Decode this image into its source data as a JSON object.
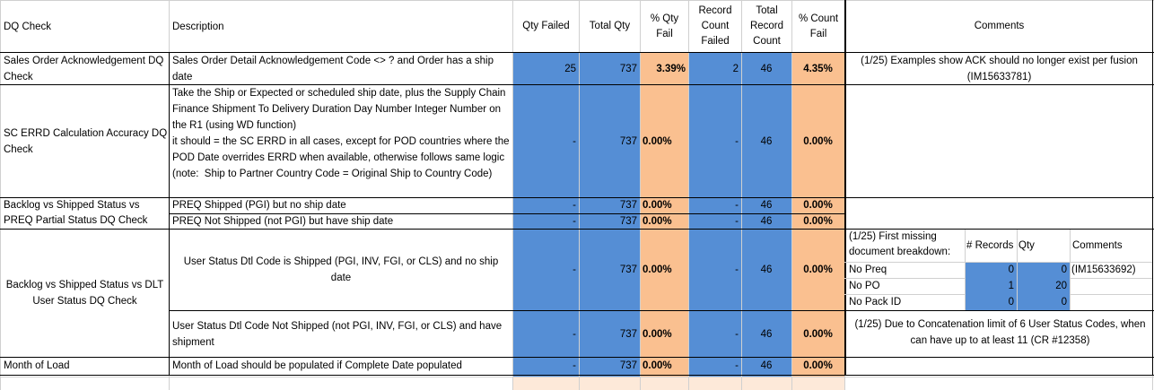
{
  "headers": {
    "dq_check": "DQ Check",
    "description": "Description",
    "qty_failed": "Qty Failed",
    "total_qty": "Total Qty",
    "pct_qty_fail": "% Qty Fail",
    "record_count_failed": "Record Count Failed",
    "total_record_count": "Total Record Count",
    "pct_count_fail": "% Count Fail",
    "comments": "Comments"
  },
  "rows": [
    {
      "check": "Sales Order Acknowledgement DQ Check",
      "description": "Sales Order Detail Acknowledgement Code <> ? and Order has a ship date",
      "qty_failed": "25",
      "total_qty": "737",
      "pct_qty": "3.39%",
      "rec_failed": "2",
      "rec_total": "46",
      "pct_count": "4.35%",
      "comment": "(1/25)  Examples show ACK should no longer exist per fusion (IM15633781)"
    },
    {
      "check": "SC ERRD Calculation Accuracy DQ Check",
      "description": "Take the Ship or Expected or scheduled ship date, plus the Supply Chain Finance Shipment To Delivery Duration Day Number Integer Number on the R1 (using WD function)\nit should = the SC ERRD in all cases, except for POD countries where the POD Date overrides ERRD when available, otherwise follows same logic  (note:  Ship to Partner Country Code = Original Ship to Country Code)",
      "qty_failed": "-",
      "total_qty": "737",
      "pct_qty": "0.00%",
      "rec_failed": "-",
      "rec_total": "46",
      "pct_count": "0.00%"
    },
    {
      "check": "Backlog vs Shipped Status vs PREQ Partial Status DQ Check",
      "sub": [
        {
          "description": "PREQ Shipped (PGI) but no ship date",
          "qty_failed": "-",
          "total_qty": "737",
          "pct_qty": "0.00%",
          "rec_failed": "-",
          "rec_total": "46",
          "pct_count": "0.00%"
        },
        {
          "description": "PREQ Not Shipped (not PGI) but have ship date",
          "qty_failed": "-",
          "total_qty": "737",
          "pct_qty": "0.00%",
          "rec_failed": "-",
          "rec_total": "46",
          "pct_count": "0.00%"
        }
      ]
    },
    {
      "check": "Backlog vs Shipped Status vs DLT User Status DQ Check",
      "sub": [
        {
          "description": "User Status Dtl Code is Shipped (PGI, INV, FGI, or CLS) and no ship date",
          "qty_failed": "-",
          "total_qty": "737",
          "pct_qty": "0.00%",
          "rec_failed": "-",
          "rec_total": "46",
          "pct_count": "0.00%"
        },
        {
          "description": "User Status Dtl Code Not Shipped (not PGI, INV, FGI, or CLS) and have shipment",
          "qty_failed": "-",
          "total_qty": "737",
          "pct_qty": "0.00%",
          "rec_failed": "-",
          "rec_total": "46",
          "pct_count": "0.00%"
        }
      ],
      "breakdown": {
        "title": "(1/25)  First missing document breakdown:",
        "col_records": "# Records",
        "col_qty": "Qty",
        "col_comments": "Comments",
        "items": [
          {
            "label": "No Preq",
            "records": "0",
            "qty": "0",
            "comment": "(IM15633692)"
          },
          {
            "label": "No PO",
            "records": "1",
            "qty": "20",
            "comment": ""
          },
          {
            "label": "No Pack ID",
            "records": "0",
            "qty": "0",
            "comment": ""
          }
        ]
      },
      "comment2": "(1/25)  Due to Concatenation limit of 6 User Status Codes, when can have up to at least 11 (CR #12358)"
    },
    {
      "check": "Month of Load",
      "description": "Month of Load should be populated if Complete Date populated",
      "qty_failed": "-",
      "total_qty": "737",
      "pct_qty": "0.00%",
      "rec_failed": "-",
      "rec_total": "46",
      "pct_count": "0.00%"
    }
  ],
  "colors": {
    "blue": "#558ed5",
    "orange": "#fac090",
    "light_orange": "#fde9d9",
    "grid": "#d0d0d0"
  }
}
